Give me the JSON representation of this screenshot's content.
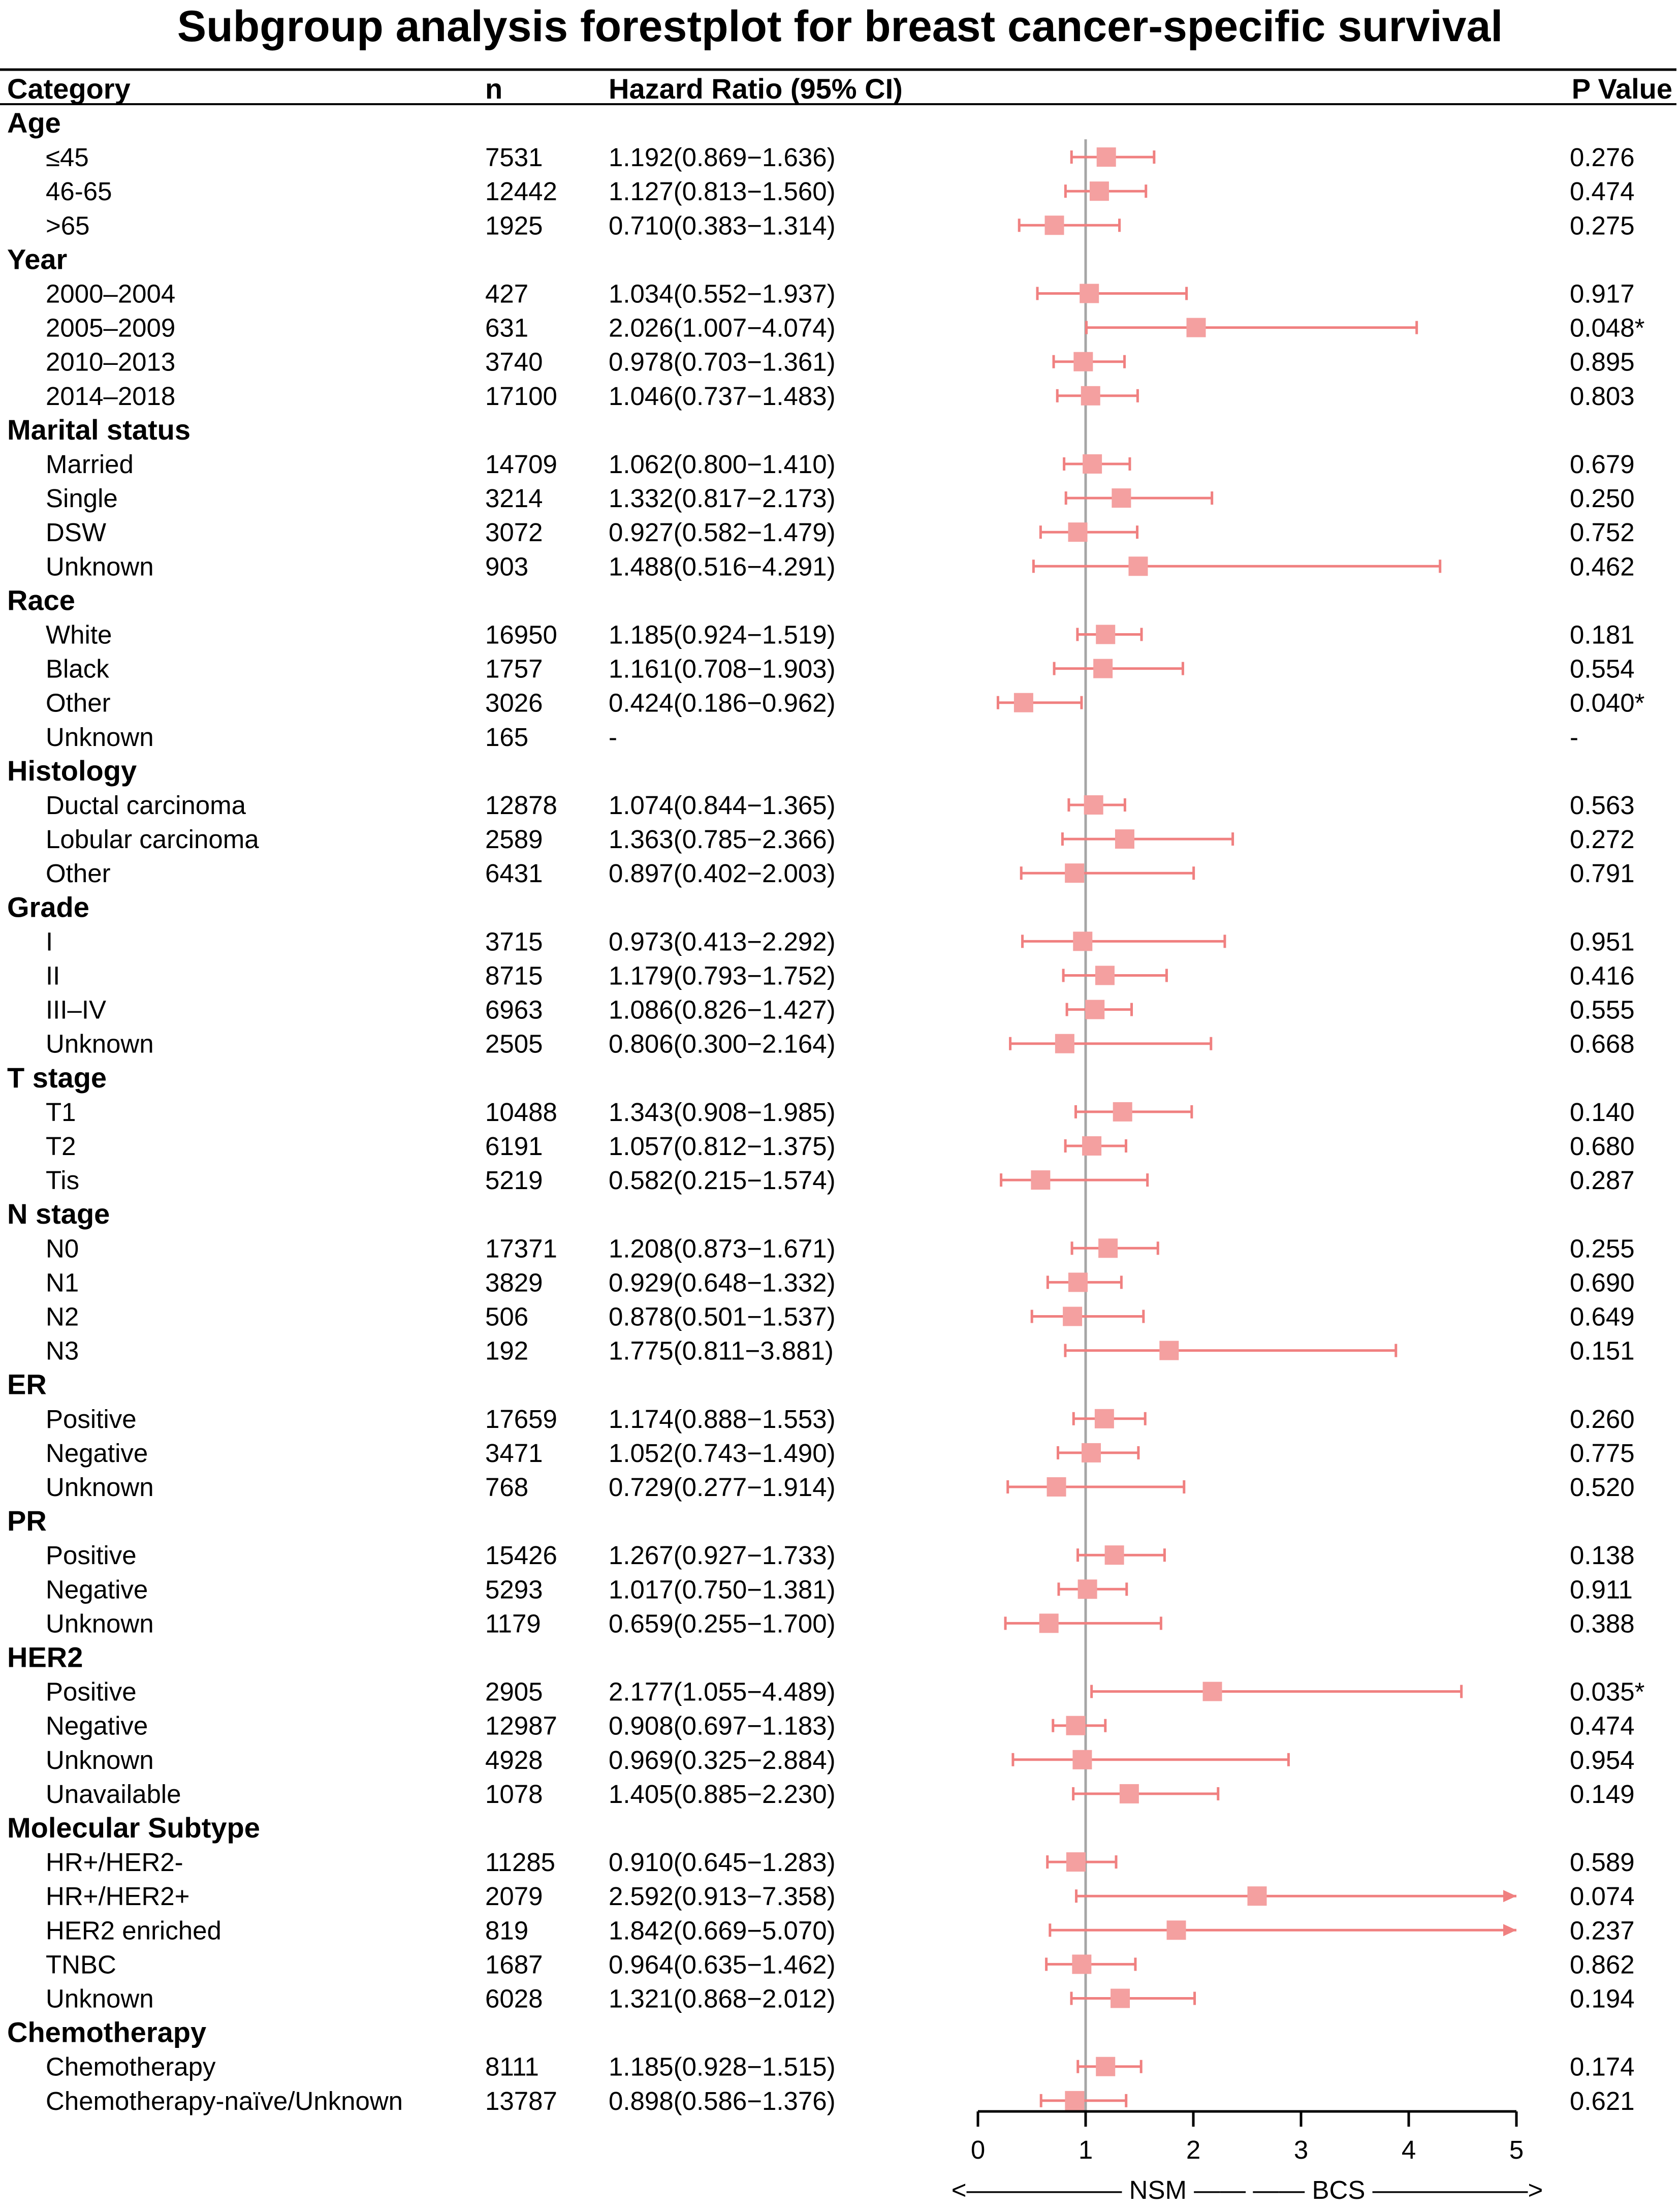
{
  "chart_data": {
    "type": "forest",
    "title": "Subgroup analysis forestplot for breast cancer-specific survival",
    "columns": {
      "category": "Category",
      "n": "n",
      "hr": "Hazard Ratio (95% CI)",
      "p": "P Value"
    },
    "xaxis": {
      "ticks": [
        "0",
        "1",
        "2",
        "3",
        "4",
        "5"
      ],
      "xlim": [
        0,
        5
      ],
      "reference_line": 1,
      "label": "<—————— NSM ——  —— BCS ——————>"
    },
    "colors": {
      "marker": "#F4A0A0",
      "ci": "#F08080",
      "ref": "#A6A6A6",
      "axis": "#000000"
    },
    "groups": [
      {
        "name": "Age",
        "rows": [
          {
            "label": "≤45",
            "n": "7531",
            "hr_text": "1.192(0.869−1.636)",
            "p": "0.276",
            "hr": 1.192,
            "lo": 0.869,
            "hi": 1.636
          },
          {
            "label": "46-65",
            "n": "12442",
            "hr_text": "1.127(0.813−1.560)",
            "p": "0.474",
            "hr": 1.127,
            "lo": 0.813,
            "hi": 1.56
          },
          {
            "label": ">65",
            "n": "1925",
            "hr_text": "0.710(0.383−1.314)",
            "p": "0.275",
            "hr": 0.71,
            "lo": 0.383,
            "hi": 1.314
          }
        ]
      },
      {
        "name": "Year",
        "rows": [
          {
            "label": "2000–2004",
            "n": "427",
            "hr_text": "1.034(0.552−1.937)",
            "p": "0.917",
            "hr": 1.034,
            "lo": 0.552,
            "hi": 1.937
          },
          {
            "label": "2005–2009",
            "n": "631",
            "hr_text": "2.026(1.007−4.074)",
            "p": "0.048*",
            "hr": 2.026,
            "lo": 1.007,
            "hi": 4.074
          },
          {
            "label": "2010–2013",
            "n": "3740",
            "hr_text": "0.978(0.703−1.361)",
            "p": "0.895",
            "hr": 0.978,
            "lo": 0.703,
            "hi": 1.361
          },
          {
            "label": "2014–2018",
            "n": "17100",
            "hr_text": "1.046(0.737−1.483)",
            "p": "0.803",
            "hr": 1.046,
            "lo": 0.737,
            "hi": 1.483
          }
        ]
      },
      {
        "name": "Marital status",
        "rows": [
          {
            "label": "Married",
            "n": "14709",
            "hr_text": "1.062(0.800−1.410)",
            "p": "0.679",
            "hr": 1.062,
            "lo": 0.8,
            "hi": 1.41
          },
          {
            "label": "Single",
            "n": "3214",
            "hr_text": "1.332(0.817−2.173)",
            "p": "0.250",
            "hr": 1.332,
            "lo": 0.817,
            "hi": 2.173
          },
          {
            "label": "DSW",
            "n": "3072",
            "hr_text": "0.927(0.582−1.479)",
            "p": "0.752",
            "hr": 0.927,
            "lo": 0.582,
            "hi": 1.479
          },
          {
            "label": "Unknown",
            "n": "903",
            "hr_text": "1.488(0.516−4.291)",
            "p": "0.462",
            "hr": 1.488,
            "lo": 0.516,
            "hi": 4.291
          }
        ]
      },
      {
        "name": "Race",
        "rows": [
          {
            "label": "White",
            "n": "16950",
            "hr_text": "1.185(0.924−1.519)",
            "p": "0.181",
            "hr": 1.185,
            "lo": 0.924,
            "hi": 1.519
          },
          {
            "label": "Black",
            "n": "1757",
            "hr_text": "1.161(0.708−1.903)",
            "p": "0.554",
            "hr": 1.161,
            "lo": 0.708,
            "hi": 1.903
          },
          {
            "label": "Other",
            "n": "3026",
            "hr_text": "0.424(0.186−0.962)",
            "p": "0.040*",
            "hr": 0.424,
            "lo": 0.186,
            "hi": 0.962
          },
          {
            "label": "Unknown",
            "n": "165",
            "hr_text": "-",
            "p": "-",
            "hr": null,
            "lo": null,
            "hi": null
          }
        ]
      },
      {
        "name": "Histology",
        "rows": [
          {
            "label": "Ductal carcinoma",
            "n": "12878",
            "hr_text": "1.074(0.844−1.365)",
            "p": "0.563",
            "hr": 1.074,
            "lo": 0.844,
            "hi": 1.365
          },
          {
            "label": "Lobular carcinoma",
            "n": "2589",
            "hr_text": "1.363(0.785−2.366)",
            "p": "0.272",
            "hr": 1.363,
            "lo": 0.785,
            "hi": 2.366
          },
          {
            "label": "Other",
            "n": "6431",
            "hr_text": "0.897(0.402−2.003)",
            "p": "0.791",
            "hr": 0.897,
            "lo": 0.402,
            "hi": 2.003
          }
        ]
      },
      {
        "name": "Grade",
        "rows": [
          {
            "label": "I",
            "n": "3715",
            "hr_text": "0.973(0.413−2.292)",
            "p": "0.951",
            "hr": 0.973,
            "lo": 0.413,
            "hi": 2.292
          },
          {
            "label": "II",
            "n": "8715",
            "hr_text": "1.179(0.793−1.752)",
            "p": "0.416",
            "hr": 1.179,
            "lo": 0.793,
            "hi": 1.752
          },
          {
            "label": "III–IV",
            "n": "6963",
            "hr_text": "1.086(0.826−1.427)",
            "p": "0.555",
            "hr": 1.086,
            "lo": 0.826,
            "hi": 1.427
          },
          {
            "label": "Unknown",
            "n": "2505",
            "hr_text": "0.806(0.300−2.164)",
            "p": "0.668",
            "hr": 0.806,
            "lo": 0.3,
            "hi": 2.164
          }
        ]
      },
      {
        "name": "T stage",
        "rows": [
          {
            "label": "T1",
            "n": "10488",
            "hr_text": "1.343(0.908−1.985)",
            "p": "0.140",
            "hr": 1.343,
            "lo": 0.908,
            "hi": 1.985
          },
          {
            "label": "T2",
            "n": "6191",
            "hr_text": "1.057(0.812−1.375)",
            "p": "0.680",
            "hr": 1.057,
            "lo": 0.812,
            "hi": 1.375
          },
          {
            "label": "Tis",
            "n": "5219",
            "hr_text": "0.582(0.215−1.574)",
            "p": "0.287",
            "hr": 0.582,
            "lo": 0.215,
            "hi": 1.574
          }
        ]
      },
      {
        "name": "N stage",
        "rows": [
          {
            "label": "N0",
            "n": "17371",
            "hr_text": "1.208(0.873−1.671)",
            "p": "0.255",
            "hr": 1.208,
            "lo": 0.873,
            "hi": 1.671
          },
          {
            "label": "N1",
            "n": "3829",
            "hr_text": "0.929(0.648−1.332)",
            "p": "0.690",
            "hr": 0.929,
            "lo": 0.648,
            "hi": 1.332
          },
          {
            "label": "N2",
            "n": "506",
            "hr_text": "0.878(0.501−1.537)",
            "p": "0.649",
            "hr": 0.878,
            "lo": 0.501,
            "hi": 1.537
          },
          {
            "label": "N3",
            "n": "192",
            "hr_text": "1.775(0.811−3.881)",
            "p": "0.151",
            "hr": 1.775,
            "lo": 0.811,
            "hi": 3.881
          }
        ]
      },
      {
        "name": "ER",
        "rows": [
          {
            "label": "Positive",
            "n": "17659",
            "hr_text": "1.174(0.888−1.553)",
            "p": "0.260",
            "hr": 1.174,
            "lo": 0.888,
            "hi": 1.553
          },
          {
            "label": "Negative",
            "n": "3471",
            "hr_text": "1.052(0.743−1.490)",
            "p": "0.775",
            "hr": 1.052,
            "lo": 0.743,
            "hi": 1.49
          },
          {
            "label": "Unknown",
            "n": "768",
            "hr_text": "0.729(0.277−1.914)",
            "p": "0.520",
            "hr": 0.729,
            "lo": 0.277,
            "hi": 1.914
          }
        ]
      },
      {
        "name": "PR",
        "rows": [
          {
            "label": "Positive",
            "n": "15426",
            "hr_text": "1.267(0.927−1.733)",
            "p": "0.138",
            "hr": 1.267,
            "lo": 0.927,
            "hi": 1.733
          },
          {
            "label": "Negative",
            "n": "5293",
            "hr_text": "1.017(0.750−1.381)",
            "p": "0.911",
            "hr": 1.017,
            "lo": 0.75,
            "hi": 1.381
          },
          {
            "label": "Unknown",
            "n": "1179",
            "hr_text": "0.659(0.255−1.700)",
            "p": "0.388",
            "hr": 0.659,
            "lo": 0.255,
            "hi": 1.7
          }
        ]
      },
      {
        "name": "HER2",
        "rows": [
          {
            "label": "Positive",
            "n": "2905",
            "hr_text": "2.177(1.055−4.489)",
            "p": "0.035*",
            "hr": 2.177,
            "lo": 1.055,
            "hi": 4.489
          },
          {
            "label": "Negative",
            "n": "12987",
            "hr_text": "0.908(0.697−1.183)",
            "p": "0.474",
            "hr": 0.908,
            "lo": 0.697,
            "hi": 1.183
          },
          {
            "label": "Unknown",
            "n": "4928",
            "hr_text": "0.969(0.325−2.884)",
            "p": "0.954",
            "hr": 0.969,
            "lo": 0.325,
            "hi": 2.884
          },
          {
            "label": "Unavailable",
            "n": "1078",
            "hr_text": "1.405(0.885−2.230)",
            "p": "0.149",
            "hr": 1.405,
            "lo": 0.885,
            "hi": 2.23
          }
        ]
      },
      {
        "name": "Molecular Subtype",
        "rows": [
          {
            "label": "HR+/HER2-",
            "n": "11285",
            "hr_text": "0.910(0.645−1.283)",
            "p": "0.589",
            "hr": 0.91,
            "lo": 0.645,
            "hi": 1.283
          },
          {
            "label": "HR+/HER2+",
            "n": "2079",
            "hr_text": "2.592(0.913−7.358)",
            "p": "0.074",
            "hr": 2.592,
            "lo": 0.913,
            "hi": 7.358
          },
          {
            "label": "HER2 enriched",
            "n": "819",
            "hr_text": "1.842(0.669−5.070)",
            "p": "0.237",
            "hr": 1.842,
            "lo": 0.669,
            "hi": 5.07
          },
          {
            "label": "TNBC",
            "n": "1687",
            "hr_text": "0.964(0.635−1.462)",
            "p": "0.862",
            "hr": 0.964,
            "lo": 0.635,
            "hi": 1.462
          },
          {
            "label": "Unknown",
            "n": "6028",
            "hr_text": "1.321(0.868−2.012)",
            "p": "0.194",
            "hr": 1.321,
            "lo": 0.868,
            "hi": 2.012
          }
        ]
      },
      {
        "name": "Chemotherapy",
        "rows": [
          {
            "label": "Chemotherapy",
            "n": "8111",
            "hr_text": "1.185(0.928−1.515)",
            "p": "0.174",
            "hr": 1.185,
            "lo": 0.928,
            "hi": 1.515
          },
          {
            "label": "Chemotherapy-naïve/Unknown",
            "n": "13787",
            "hr_text": "0.898(0.586−1.376)",
            "p": "0.621",
            "hr": 0.898,
            "lo": 0.586,
            "hi": 1.376
          }
        ]
      }
    ]
  }
}
